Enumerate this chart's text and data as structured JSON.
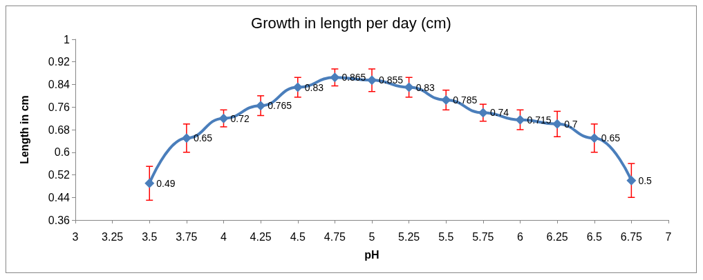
{
  "chart_data": {
    "type": "line",
    "title": "Growth in length per day (cm)",
    "xlabel": "pH",
    "ylabel": "Length in cm",
    "x": [
      3.5,
      3.75,
      4,
      4.25,
      4.5,
      4.75,
      5,
      5.25,
      5.5,
      5.75,
      6,
      6.25,
      6.5,
      6.75
    ],
    "series": [
      {
        "color": "#4a7ebb",
        "values": [
          0.49,
          0.65,
          0.72,
          0.765,
          0.83,
          0.865,
          0.855,
          0.83,
          0.785,
          0.74,
          0.715,
          0.7,
          0.65,
          0.5
        ],
        "errors": [
          0.06,
          0.05,
          0.03,
          0.035,
          0.035,
          0.03,
          0.04,
          0.035,
          0.035,
          0.03,
          0.035,
          0.045,
          0.05,
          0.06
        ]
      }
    ],
    "xlim": [
      3,
      7
    ],
    "xticks": [
      3,
      3.25,
      3.5,
      3.75,
      4,
      4.25,
      4.5,
      4.75,
      5,
      5.25,
      5.5,
      5.75,
      6,
      6.25,
      6.5,
      6.75,
      7
    ],
    "ylim": [
      0.36,
      1
    ],
    "yticks": [
      0.36,
      0.44,
      0.52,
      0.6,
      0.68,
      0.76,
      0.84,
      0.92,
      1
    ],
    "grid": false,
    "marker": "diamond",
    "line_style": "solid",
    "data_labels": true
  }
}
